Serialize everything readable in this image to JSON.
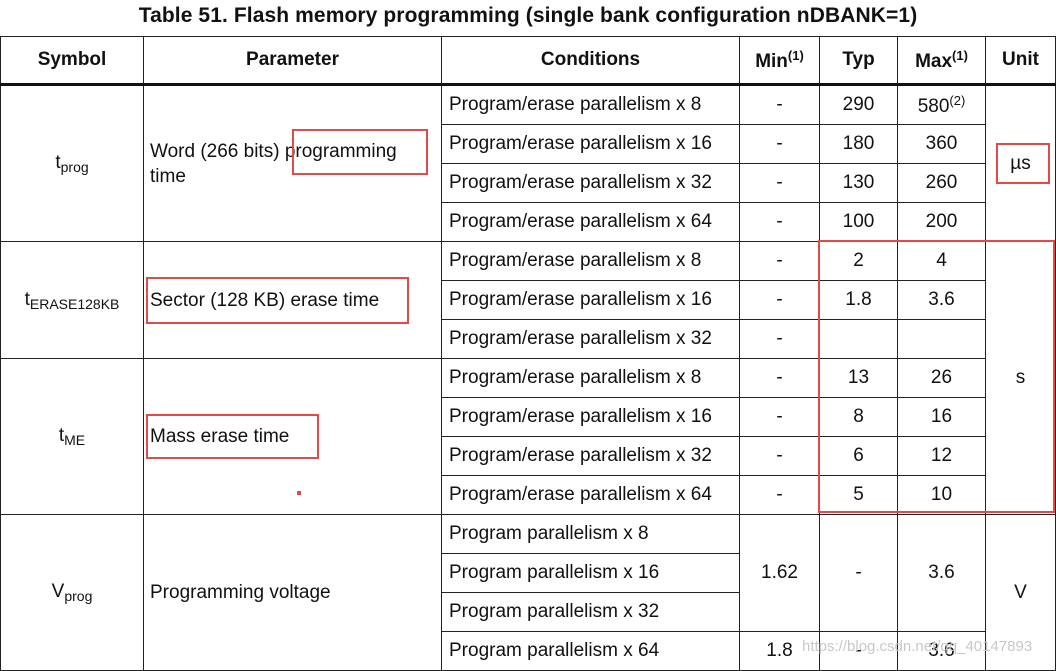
{
  "title": "Table 51. Flash memory programming (single bank configuration nDBANK=1)",
  "headers": {
    "symbol": "Symbol",
    "parameter": "Parameter",
    "conditions": "Conditions",
    "min": "Min",
    "min_note": "(1)",
    "typ": "Typ",
    "max": "Max",
    "max_note": "(1)",
    "unit": "Unit"
  },
  "groups": [
    {
      "symbol_base": "t",
      "symbol_sub": "prog",
      "parameter_pre": "Word (266 bits) ",
      "parameter_hl": "programming",
      "parameter_post": "time",
      "unit": "µs",
      "rows": [
        {
          "cond": "Program/erase parallelism x 8",
          "min": "-",
          "typ": "290",
          "max": "580",
          "max_note": "(2)"
        },
        {
          "cond": "Program/erase parallelism x 16",
          "min": "-",
          "typ": "180",
          "max": "360"
        },
        {
          "cond": "Program/erase parallelism x 32",
          "min": "-",
          "typ": "130",
          "max": "260"
        },
        {
          "cond": "Program/erase parallelism x 64",
          "min": "-",
          "typ": "100",
          "max": "200"
        }
      ]
    },
    {
      "symbol_base": "t",
      "symbol_sub": "ERASE128KB",
      "parameter": "Sector (128 KB) erase time",
      "rows": [
        {
          "cond": "Program/erase parallelism x 8",
          "min": "-",
          "typ": "2",
          "max": "4"
        },
        {
          "cond": "Program/erase parallelism x 16",
          "min": "-",
          "typ": "1.8",
          "max": "3.6"
        },
        {
          "cond": "Program/erase parallelism x 32",
          "min": "-",
          "typ": "",
          "max": ""
        }
      ]
    },
    {
      "symbol_base": "t",
      "symbol_sub": "ME",
      "parameter": "Mass erase time",
      "rows": [
        {
          "cond": "Program/erase parallelism x 8",
          "min": "-",
          "typ": "13",
          "max": "26"
        },
        {
          "cond": "Program/erase parallelism x 16",
          "min": "-",
          "typ": "8",
          "max": "16"
        },
        {
          "cond": "Program/erase parallelism x 32",
          "min": "-",
          "typ": "6",
          "max": "12"
        },
        {
          "cond": "Program/erase parallelism x 64",
          "min": "-",
          "typ": "5",
          "max": "10"
        }
      ]
    },
    {
      "symbol_base": "V",
      "symbol_sub": "prog",
      "parameter": "Programming voltage",
      "unit": "V",
      "rows": [
        {
          "cond": "Program parallelism x 8"
        },
        {
          "cond": "Program parallelism x 16"
        },
        {
          "cond": "Program parallelism x 32"
        },
        {
          "cond": "Program parallelism x 64",
          "min": "1.8",
          "typ": "-",
          "max": "3.6"
        }
      ],
      "merged": {
        "min": "1.62",
        "typ": "-",
        "max": "3.6"
      }
    }
  ],
  "erase_unit": "s",
  "watermark": "https://blog.csdn.net/qq_40147893",
  "highlight_color": "#e24a4a"
}
